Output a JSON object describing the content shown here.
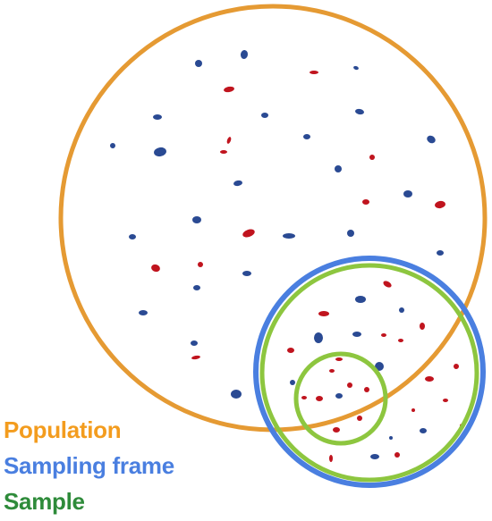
{
  "legend": {
    "population": "Population",
    "sampling_frame": "Sampling frame",
    "sample": "Sample"
  },
  "colors": {
    "population": "#e59a33",
    "sampling_frame": "#4a7fe0",
    "frame_inner": "#8dc63f",
    "sample": "#8dc63f",
    "label_population": "#f39c1e",
    "label_sampling_frame": "#4a7fe0",
    "label_sample": "#2e8b3a",
    "dot_blue": "#2a4a93",
    "dot_red": "#c0141e"
  }
}
